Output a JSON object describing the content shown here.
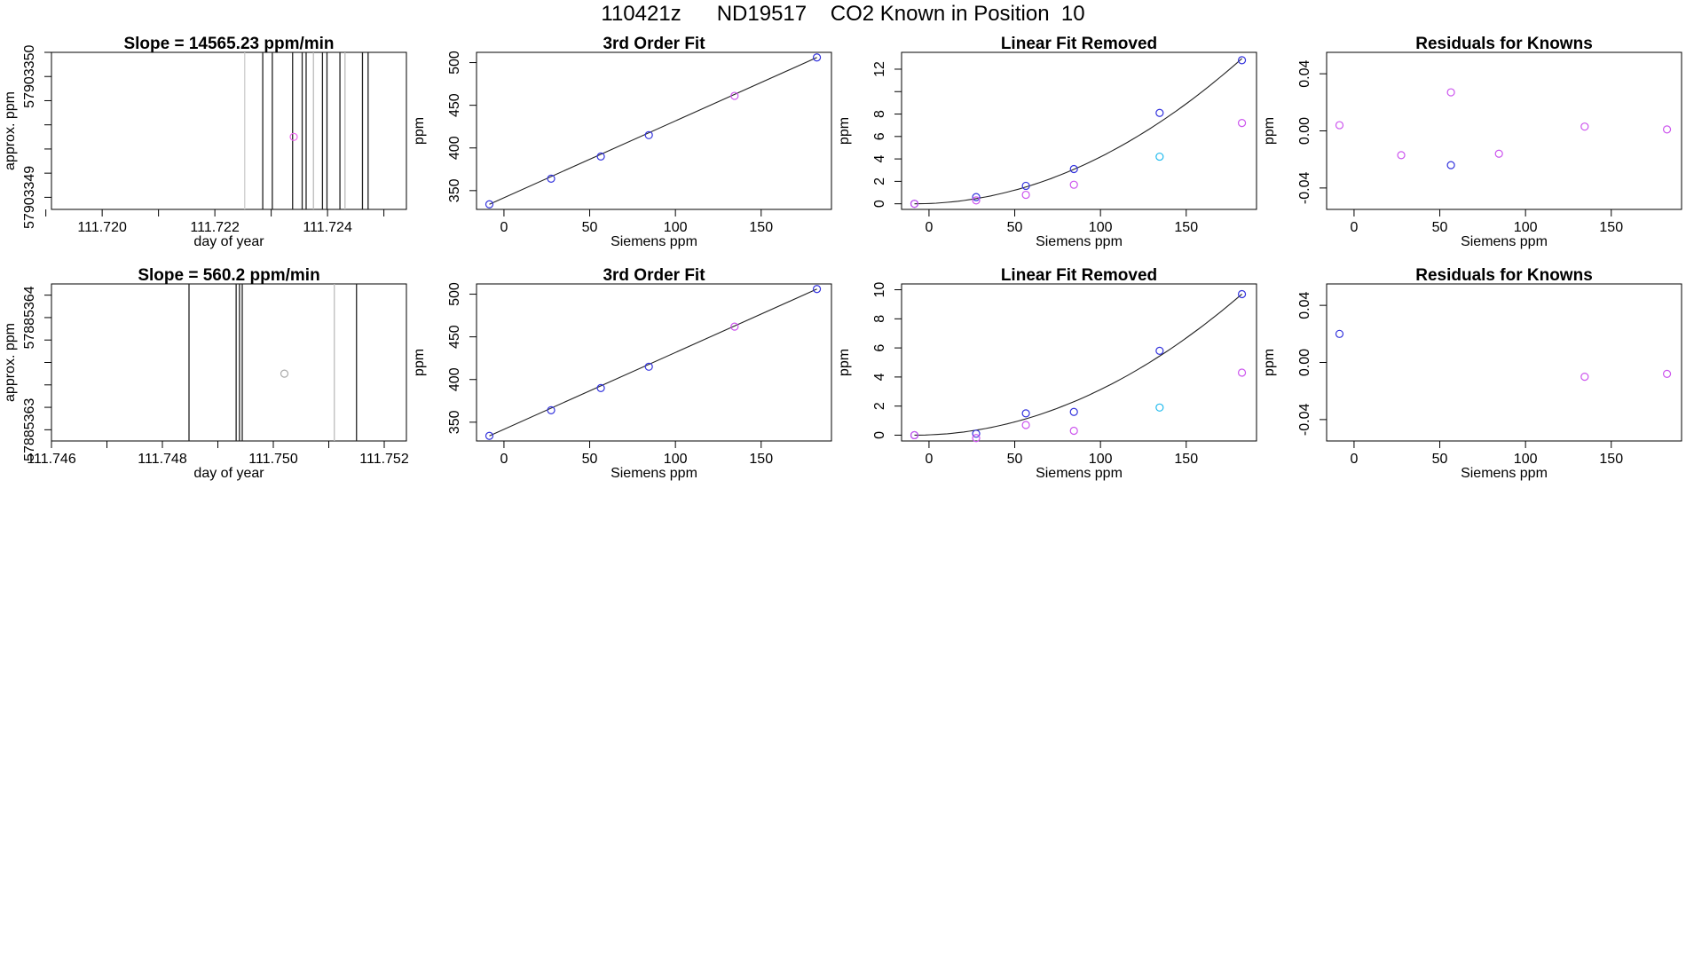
{
  "figure": {
    "title": "110421z      ND19517    CO2 Known in Position  10"
  },
  "chart_data": [
    {
      "panel": "row1-time",
      "type": "line",
      "title": "Slope =  14565.23  ppm/min",
      "xlabel": "day of year",
      "ylabel": "approx. ppm",
      "xlim": [
        111.7191,
        111.7254
      ],
      "ylim": [
        57903348.9,
        57903350.2
      ],
      "xticks": [
        111.719,
        111.72,
        111.721,
        111.722,
        111.723,
        111.724,
        111.725
      ],
      "xtick_labels": [
        "111.720",
        "111.722",
        "111.724"
      ],
      "xtick_label_values": [
        111.72,
        111.722,
        111.724
      ],
      "yticks": [
        57903349.0,
        57903349.2,
        57903349.4,
        57903349.6,
        57903349.8,
        57903350.0,
        57903350.2
      ],
      "ytick_labels": [
        "57903349",
        "57903350"
      ],
      "ytick_label_values": [
        57903349.0,
        57903350.0
      ],
      "vlines": [
        {
          "x": 111.72253,
          "color": "#cccccc"
        },
        {
          "x": 111.72285,
          "color": "#222222"
        },
        {
          "x": 111.72302,
          "color": "#222222"
        },
        {
          "x": 111.72338,
          "color": "#222222"
        },
        {
          "x": 111.72355,
          "color": "#222222"
        },
        {
          "x": 111.72362,
          "color": "#222222"
        },
        {
          "x": 111.72375,
          "color": "#bbbbbb"
        },
        {
          "x": 111.72391,
          "color": "#222222"
        },
        {
          "x": 111.72399,
          "color": "#222222"
        },
        {
          "x": 111.72422,
          "color": "#222222"
        },
        {
          "x": 111.72431,
          "color": "#bbbbbb"
        },
        {
          "x": 111.72462,
          "color": "#222222"
        },
        {
          "x": 111.72472,
          "color": "#222222"
        }
      ],
      "points": [
        {
          "x": 111.7234,
          "y": 57903349.5,
          "color": "#ee66ee"
        }
      ]
    },
    {
      "panel": "row1-fit",
      "type": "scatter",
      "title": "3rd Order Fit",
      "xlabel": "Siemens ppm",
      "ylabel": "ppm",
      "xlim": [
        -16,
        191
      ],
      "ylim": [
        328,
        512
      ],
      "xticks": [
        0,
        50,
        100,
        150
      ],
      "xtick_labels": [
        "0",
        "50",
        "100",
        "150"
      ],
      "yticks": [
        350,
        400,
        450,
        500
      ],
      "ytick_labels": [
        "350",
        "400",
        "450",
        "500"
      ],
      "curve": {
        "kind": "linear",
        "x0": -8.5,
        "y0": 334,
        "x1": 182.5,
        "y1": 506
      },
      "points": [
        {
          "x": -8.5,
          "y": 334,
          "color": "#3333dd"
        },
        {
          "x": 27.5,
          "y": 364,
          "color": "#3333dd"
        },
        {
          "x": 56.5,
          "y": 390,
          "color": "#3333dd"
        },
        {
          "x": 84.5,
          "y": 415,
          "color": "#3333dd"
        },
        {
          "x": 134.5,
          "y": 461,
          "color": "#cc55ee"
        },
        {
          "x": 182.5,
          "y": 506,
          "color": "#3333dd"
        }
      ]
    },
    {
      "panel": "row1-linear",
      "type": "scatter",
      "title": "Linear Fit Removed",
      "xlabel": "Siemens ppm",
      "ylabel": "ppm",
      "xlim": [
        -16,
        191
      ],
      "ylim": [
        -0.5,
        13.5
      ],
      "xticks": [
        0,
        50,
        100,
        150
      ],
      "xtick_labels": [
        "0",
        "50",
        "100",
        "150"
      ],
      "yticks": [
        0,
        2,
        4,
        6,
        8,
        10,
        12
      ],
      "ytick_labels": [
        "0",
        "2",
        "4",
        "6",
        "8",
        "12"
      ],
      "ytick_label_values": [
        0,
        2,
        4,
        6,
        8,
        12
      ],
      "curve": {
        "kind": "quadratic",
        "xv": -8.5,
        "yv": 0,
        "a": 0.000355
      },
      "points": [
        {
          "x": -8.5,
          "y": 0.0,
          "color": "#3333dd"
        },
        {
          "x": -8.5,
          "y": 0.0,
          "color": "#cc55ee"
        },
        {
          "x": 27.5,
          "y": 0.6,
          "color": "#3333dd"
        },
        {
          "x": 27.5,
          "y": 0.3,
          "color": "#cc55ee"
        },
        {
          "x": 56.5,
          "y": 1.6,
          "color": "#3333dd"
        },
        {
          "x": 56.5,
          "y": 0.8,
          "color": "#cc55ee"
        },
        {
          "x": 84.5,
          "y": 3.1,
          "color": "#3333dd"
        },
        {
          "x": 84.5,
          "y": 1.7,
          "color": "#cc55ee"
        },
        {
          "x": 134.5,
          "y": 8.1,
          "color": "#3333dd"
        },
        {
          "x": 134.5,
          "y": 4.2,
          "color": "#22bbee"
        },
        {
          "x": 182.5,
          "y": 12.8,
          "color": "#3333dd"
        },
        {
          "x": 182.5,
          "y": 7.2,
          "color": "#cc55ee"
        }
      ]
    },
    {
      "panel": "row1-residuals",
      "type": "scatter",
      "title": "Residuals for Knowns",
      "xlabel": "Siemens ppm",
      "ylabel": "ppm",
      "xlim": [
        -16,
        191
      ],
      "ylim": [
        -0.055,
        0.055
      ],
      "xticks": [
        0,
        50,
        100,
        150
      ],
      "xtick_labels": [
        "0",
        "50",
        "100",
        "150"
      ],
      "yticks": [
        -0.04,
        0.0,
        0.04
      ],
      "ytick_labels": [
        "-0.04",
        "0.00",
        "0.04"
      ],
      "points": [
        {
          "x": -8.5,
          "y": 0.004,
          "color": "#cc55ee"
        },
        {
          "x": 27.5,
          "y": -0.017,
          "color": "#cc55ee"
        },
        {
          "x": 56.5,
          "y": 0.027,
          "color": "#cc55ee"
        },
        {
          "x": 56.5,
          "y": -0.024,
          "color": "#3333dd"
        },
        {
          "x": 84.5,
          "y": -0.016,
          "color": "#cc55ee"
        },
        {
          "x": 134.5,
          "y": 0.003,
          "color": "#cc55ee"
        },
        {
          "x": 182.5,
          "y": 0.001,
          "color": "#cc55ee"
        }
      ]
    },
    {
      "panel": "row2-time",
      "type": "line",
      "title": "Slope =  560.2  ppm/min",
      "xlabel": "day of year",
      "ylabel": "approx. ppm",
      "xlim": [
        111.746,
        111.7524
      ],
      "ylim": [
        57885362.9,
        57885364.3
      ],
      "xticks": [
        111.746,
        111.747,
        111.748,
        111.749,
        111.75,
        111.751,
        111.752
      ],
      "xtick_labels": [
        "111.746",
        "111.748",
        "111.750",
        "111.752"
      ],
      "xtick_label_values": [
        111.746,
        111.748,
        111.75,
        111.752
      ],
      "yticks": [
        57885363.0,
        57885363.2,
        57885363.4,
        57885363.6,
        57885363.8,
        57885364.0,
        57885364.2
      ],
      "ytick_labels": [
        "57885363",
        "57885364"
      ],
      "ytick_label_values": [
        57885363.0,
        57885364.0
      ],
      "vlines": [
        {
          "x": 111.74848,
          "color": "#222222"
        },
        {
          "x": 111.74933,
          "color": "#222222"
        },
        {
          "x": 111.74939,
          "color": "#222222"
        },
        {
          "x": 111.74944,
          "color": "#222222"
        },
        {
          "x": 111.7511,
          "color": "#bbbbbb"
        },
        {
          "x": 111.7515,
          "color": "#222222"
        }
      ],
      "points": [
        {
          "x": 111.7502,
          "y": 57885363.5,
          "color": "#aaaaaa"
        }
      ]
    },
    {
      "panel": "row2-fit",
      "type": "scatter",
      "title": "3rd Order Fit",
      "xlabel": "Siemens ppm",
      "ylabel": "ppm",
      "xlim": [
        -16,
        191
      ],
      "ylim": [
        328,
        512
      ],
      "xticks": [
        0,
        50,
        100,
        150
      ],
      "xtick_labels": [
        "0",
        "50",
        "100",
        "150"
      ],
      "yticks": [
        350,
        400,
        450,
        500
      ],
      "ytick_labels": [
        "350",
        "400",
        "450",
        "500"
      ],
      "curve": {
        "kind": "linear",
        "x0": -8.5,
        "y0": 334,
        "x1": 182.5,
        "y1": 506
      },
      "points": [
        {
          "x": -8.5,
          "y": 334,
          "color": "#3333dd"
        },
        {
          "x": 27.5,
          "y": 364,
          "color": "#3333dd"
        },
        {
          "x": 56.5,
          "y": 390,
          "color": "#3333dd"
        },
        {
          "x": 84.5,
          "y": 415,
          "color": "#3333dd"
        },
        {
          "x": 134.5,
          "y": 462,
          "color": "#cc55ee"
        },
        {
          "x": 182.5,
          "y": 506,
          "color": "#3333dd"
        }
      ]
    },
    {
      "panel": "row2-linear",
      "type": "scatter",
      "title": "Linear Fit Removed",
      "xlabel": "Siemens ppm",
      "ylabel": "ppm",
      "xlim": [
        -16,
        191
      ],
      "ylim": [
        -0.4,
        10.4
      ],
      "xticks": [
        0,
        50,
        100,
        150
      ],
      "xtick_labels": [
        "0",
        "50",
        "100",
        "150"
      ],
      "yticks": [
        0,
        2,
        4,
        6,
        8,
        10
      ],
      "ytick_labels": [
        "0",
        "2",
        "4",
        "6",
        "8",
        "10"
      ],
      "curve": {
        "kind": "quadratic",
        "xv": -8.5,
        "yv": 0,
        "a": 0.000266
      },
      "points": [
        {
          "x": -8.5,
          "y": 0.0,
          "color": "#3333dd"
        },
        {
          "x": -8.5,
          "y": 0.0,
          "color": "#cc55ee"
        },
        {
          "x": 27.5,
          "y": 0.1,
          "color": "#3333dd"
        },
        {
          "x": 27.5,
          "y": -0.2,
          "color": "#cc55ee"
        },
        {
          "x": 56.5,
          "y": 1.5,
          "color": "#3333dd"
        },
        {
          "x": 56.5,
          "y": 0.7,
          "color": "#cc55ee"
        },
        {
          "x": 84.5,
          "y": 1.6,
          "color": "#3333dd"
        },
        {
          "x": 84.5,
          "y": 0.3,
          "color": "#cc55ee"
        },
        {
          "x": 134.5,
          "y": 5.8,
          "color": "#3333dd"
        },
        {
          "x": 134.5,
          "y": 1.9,
          "color": "#22bbee"
        },
        {
          "x": 182.5,
          "y": 9.7,
          "color": "#3333dd"
        },
        {
          "x": 182.5,
          "y": 4.3,
          "color": "#cc55ee"
        }
      ]
    },
    {
      "panel": "row2-residuals",
      "type": "scatter",
      "title": "Residuals for Knowns",
      "xlabel": "Siemens ppm",
      "ylabel": "ppm",
      "xlim": [
        -16,
        191
      ],
      "ylim": [
        -0.055,
        0.055
      ],
      "xticks": [
        0,
        50,
        100,
        150
      ],
      "xtick_labels": [
        "0",
        "50",
        "100",
        "150"
      ],
      "yticks": [
        -0.04,
        0.0,
        0.04
      ],
      "ytick_labels": [
        "-0.04",
        "0.00",
        "0.04"
      ],
      "points": [
        {
          "x": -8.5,
          "y": 0.02,
          "color": "#3333dd"
        },
        {
          "x": 134.5,
          "y": -0.01,
          "color": "#cc55ee"
        },
        {
          "x": 182.5,
          "y": -0.008,
          "color": "#cc55ee"
        }
      ]
    }
  ]
}
